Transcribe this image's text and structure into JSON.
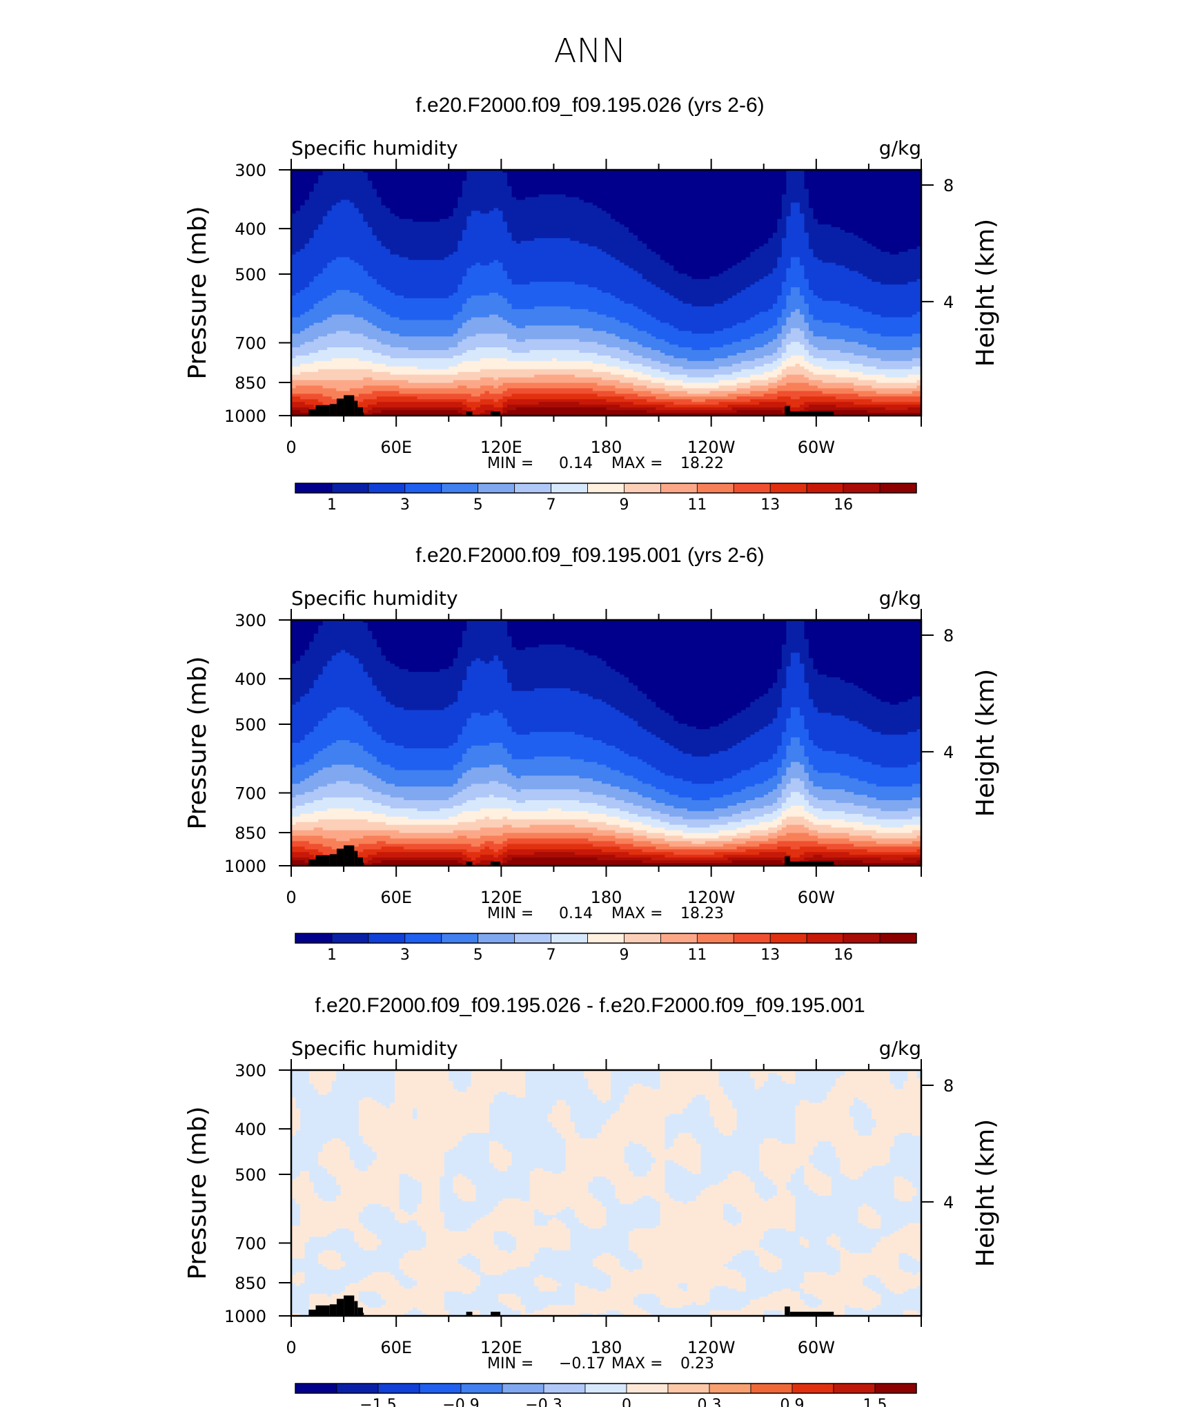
{
  "page_title": "ANN",
  "chart_data": [
    {
      "type": "heatmap",
      "title": "f.e20.F2000.f09_f09.195.026 (yrs 2-6)",
      "subtitle_left": "Specific humidity",
      "subtitle_right": "g/kg",
      "ylabel": "Pressure (mb)",
      "ylabel_right": "Height (km)",
      "x_ticks": [
        "0",
        "60E",
        "120E",
        "180",
        "120W",
        "60W"
      ],
      "y_ticks": [
        "300",
        "400",
        "500",
        "700",
        "850",
        "1000"
      ],
      "y_ticks_right": [
        "8",
        "4"
      ],
      "stats": {
        "min_label": "MIN =",
        "min": "0.14",
        "max_label": "MAX =",
        "max": "18.22"
      },
      "colorbar_labels": [
        "1",
        "3",
        "5",
        "7",
        "9",
        "11",
        "13",
        "16"
      ],
      "levels": [
        0.5,
        1,
        2,
        3,
        4,
        5,
        6,
        7,
        8,
        9,
        10,
        11,
        12,
        13,
        14,
        15,
        16
      ],
      "colors": [
        "#00008c",
        "#0820a8",
        "#1040d8",
        "#2060f0",
        "#4080f0",
        "#80a8f0",
        "#b0c8f8",
        "#d8e8fc",
        "#fff0e0",
        "#fcd0b8",
        "#fca888",
        "#f88058",
        "#f05030",
        "#e03010",
        "#c81808",
        "#a80c04",
        "#8c0000"
      ]
    },
    {
      "type": "heatmap",
      "title": "f.e20.F2000.f09_f09.195.001 (yrs 2-6)",
      "subtitle_left": "Specific humidity",
      "subtitle_right": "g/kg",
      "ylabel": "Pressure (mb)",
      "ylabel_right": "Height (km)",
      "x_ticks": [
        "0",
        "60E",
        "120E",
        "180",
        "120W",
        "60W"
      ],
      "y_ticks": [
        "300",
        "400",
        "500",
        "700",
        "850",
        "1000"
      ],
      "y_ticks_right": [
        "8",
        "4"
      ],
      "stats": {
        "min_label": "MIN =",
        "min": "0.14",
        "max_label": "MAX =",
        "max": "18.23"
      },
      "colorbar_labels": [
        "1",
        "3",
        "5",
        "7",
        "9",
        "11",
        "13",
        "16"
      ],
      "levels": [
        0.5,
        1,
        2,
        3,
        4,
        5,
        6,
        7,
        8,
        9,
        10,
        11,
        12,
        13,
        14,
        15,
        16
      ],
      "colors": [
        "#00008c",
        "#0820a8",
        "#1040d8",
        "#2060f0",
        "#4080f0",
        "#80a8f0",
        "#b0c8f8",
        "#d8e8fc",
        "#fff0e0",
        "#fcd0b8",
        "#fca888",
        "#f88058",
        "#f05030",
        "#e03010",
        "#c81808",
        "#a80c04",
        "#8c0000"
      ]
    },
    {
      "type": "heatmap",
      "title": "f.e20.F2000.f09_f09.195.026 - f.e20.F2000.f09_f09.195.001",
      "subtitle_left": "Specific humidity",
      "subtitle_right": "g/kg",
      "ylabel": "Pressure (mb)",
      "ylabel_right": "Height (km)",
      "x_ticks": [
        "0",
        "60E",
        "120E",
        "180",
        "120W",
        "60W"
      ],
      "y_ticks": [
        "300",
        "400",
        "500",
        "700",
        "850",
        "1000"
      ],
      "y_ticks_right": [
        "8",
        "4"
      ],
      "stats": {
        "min_label": "MIN =",
        "min": "−0.17",
        "max_label": "MAX =",
        "max": "0.23"
      },
      "colorbar_labels": [
        "−1.5",
        "−0.9",
        "−0.3",
        "0",
        "0.3",
        "0.9",
        "1.5"
      ],
      "colors": [
        "#00008c",
        "#0820a8",
        "#1040d8",
        "#2060f0",
        "#4080f0",
        "#80a8f0",
        "#b0c8f8",
        "#d8e8fc",
        "#fde8d8",
        "#fcc8a8",
        "#f8a070",
        "#f06838",
        "#e03010",
        "#c01808",
        "#8c0000"
      ]
    }
  ]
}
